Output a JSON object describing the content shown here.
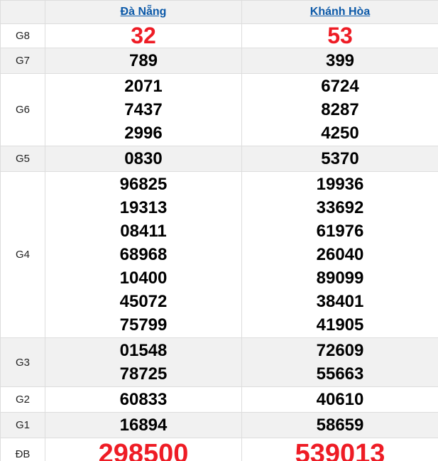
{
  "header": {
    "corner": "",
    "columns": [
      {
        "label": "Đà Nẵng"
      },
      {
        "label": "Khánh Hòa"
      }
    ]
  },
  "rows": [
    {
      "label": "G8",
      "variant": "g8",
      "cells": [
        [
          "32"
        ],
        [
          "53"
        ]
      ]
    },
    {
      "label": "G7",
      "variant": "default",
      "cells": [
        [
          "789"
        ],
        [
          "399"
        ]
      ]
    },
    {
      "label": "G6",
      "variant": "default",
      "cells": [
        [
          "2071",
          "7437",
          "2996"
        ],
        [
          "6724",
          "8287",
          "4250"
        ]
      ]
    },
    {
      "label": "G5",
      "variant": "default",
      "cells": [
        [
          "0830"
        ],
        [
          "5370"
        ]
      ]
    },
    {
      "label": "G4",
      "variant": "default",
      "cells": [
        [
          "96825",
          "19313",
          "08411",
          "68968",
          "10400",
          "45072",
          "75799"
        ],
        [
          "19936",
          "33692",
          "61976",
          "26040",
          "89099",
          "38401",
          "41905"
        ]
      ]
    },
    {
      "label": "G3",
      "variant": "default",
      "cells": [
        [
          "01548",
          "78725"
        ],
        [
          "72609",
          "55663"
        ]
      ]
    },
    {
      "label": "G2",
      "variant": "default",
      "cells": [
        [
          "60833"
        ],
        [
          "40610"
        ]
      ]
    },
    {
      "label": "G1",
      "variant": "default",
      "cells": [
        [
          "16894"
        ],
        [
          "58659"
        ]
      ]
    },
    {
      "label": "ĐB",
      "variant": "db",
      "cells": [
        [
          "298500"
        ],
        [
          "539013"
        ]
      ]
    }
  ],
  "colors": {
    "accent_red": "#ee1c25",
    "link_blue": "#0a58a8",
    "stripe_gray": "#f1f1f1",
    "border": "#dddddd"
  }
}
